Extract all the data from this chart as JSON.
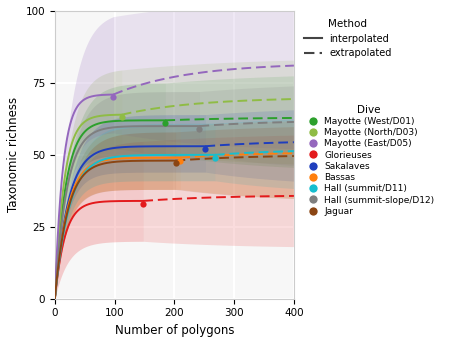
{
  "xlabel": "Number of polygons",
  "ylabel": "Taxonomic richness",
  "xlim": [
    0,
    400
  ],
  "ylim": [
    0,
    100
  ],
  "xticks": [
    0,
    100,
    200,
    300,
    400
  ],
  "yticks": [
    0,
    25,
    50,
    75,
    100
  ],
  "bg_color": "#f7f7f7",
  "grid_color": "white",
  "dives": [
    {
      "name": "Mayotte (West/D01)",
      "color": "#2ca02c",
      "interp_end_x": 185,
      "interp_end_y": 61,
      "extrap_final_y": 63,
      "asym": 62,
      "k": 0.055,
      "ci_hi_asym": 75,
      "ci_lo_asym": 50,
      "ci_k": 0.04
    },
    {
      "name": "Mayotte (North/D03)",
      "color": "#8fbc45",
      "interp_end_x": 112,
      "interp_end_y": 63,
      "extrap_final_y": 70,
      "asym": 64,
      "k": 0.065,
      "ci_hi_asym": 80,
      "ci_lo_asym": 52,
      "ci_k": 0.045
    },
    {
      "name": "Mayotte (East/D05)",
      "color": "#9467bd",
      "interp_end_x": 98,
      "interp_end_y": 70,
      "extrap_final_y": 82,
      "asym": 71,
      "k": 0.075,
      "ci_hi_asym": 100,
      "ci_lo_asym": 58,
      "ci_k": 0.04
    },
    {
      "name": "Glorieuses",
      "color": "#e31a1c",
      "interp_end_x": 148,
      "interp_end_y": 33,
      "extrap_final_y": 36,
      "asym": 34,
      "k": 0.06,
      "ci_hi_asym": 55,
      "ci_lo_asym": 20,
      "ci_k": 0.035
    },
    {
      "name": "Sakalaves",
      "color": "#1f3ebd",
      "interp_end_x": 252,
      "interp_end_y": 52,
      "extrap_final_y": 55,
      "asym": 53,
      "k": 0.045,
      "ci_hi_asym": 64,
      "ci_lo_asym": 44,
      "ci_k": 0.038
    },
    {
      "name": "Bassas",
      "color": "#ff7f0e",
      "interp_end_x": 210,
      "interp_end_y": 48,
      "extrap_final_y": 51,
      "asym": 49,
      "k": 0.048,
      "ci_hi_asym": 60,
      "ci_lo_asym": 38,
      "ci_k": 0.038
    },
    {
      "name": "Hall (summit/D11)",
      "color": "#17becf",
      "interp_end_x": 268,
      "interp_end_y": 49,
      "extrap_final_y": 52,
      "asym": 50,
      "k": 0.042,
      "ci_hi_asym": 61,
      "ci_lo_asym": 41,
      "ci_k": 0.036
    },
    {
      "name": "Hall (summit-slope/D12)",
      "color": "#7f7f7f",
      "interp_end_x": 242,
      "interp_end_y": 59,
      "extrap_final_y": 62,
      "asym": 60,
      "k": 0.05,
      "ci_hi_asym": 72,
      "ci_lo_asym": 50,
      "ci_k": 0.04
    },
    {
      "name": "Jaguar",
      "color": "#8b4513",
      "interp_end_x": 202,
      "interp_end_y": 47,
      "extrap_final_y": 50,
      "asym": 48,
      "k": 0.047,
      "ci_hi_asym": 58,
      "ci_lo_asym": 38,
      "ci_k": 0.037
    }
  ]
}
